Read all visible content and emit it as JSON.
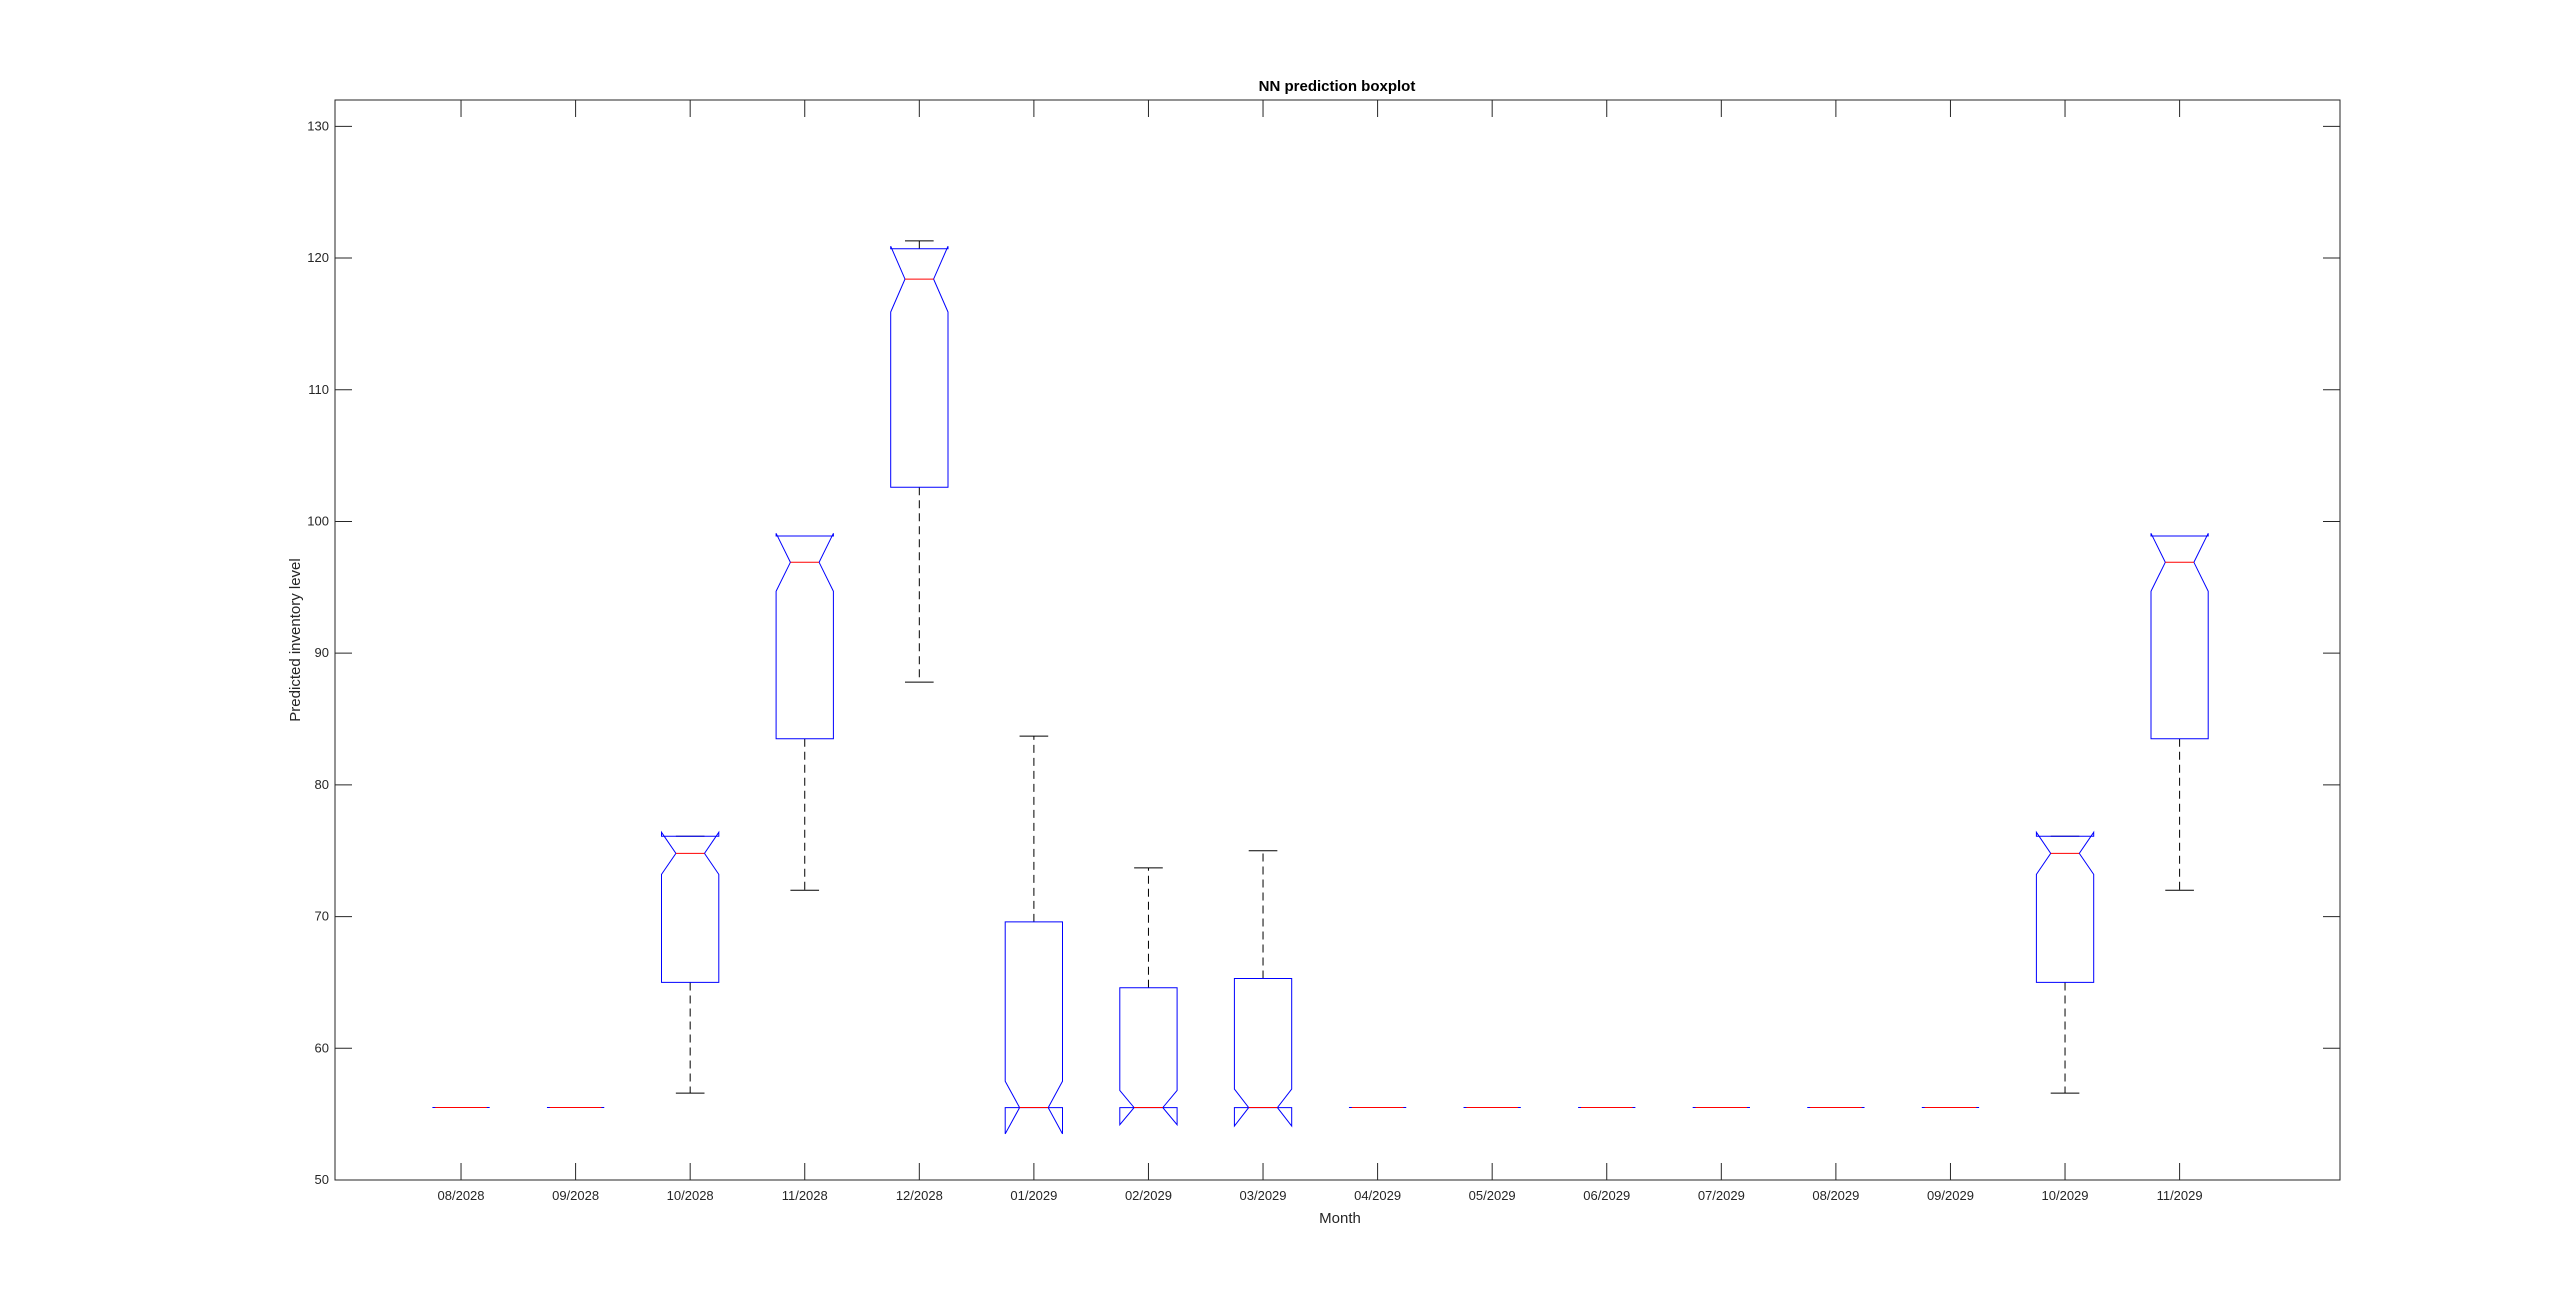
{
  "chart_data": {
    "type": "boxplot",
    "title": "NN prediction boxplot",
    "xlabel": "Month",
    "ylabel": "Predicted inventory level",
    "ylim": [
      50,
      132
    ],
    "yticks": [
      50,
      60,
      70,
      80,
      90,
      100,
      110,
      120,
      130
    ],
    "grid": false,
    "notched": true,
    "colors": {
      "box": "#0000ff",
      "median": "#ff0000",
      "whisker": "#000000",
      "axis": "#262626"
    },
    "categories": [
      "08/2028",
      "09/2028",
      "10/2028",
      "11/2028",
      "12/2028",
      "01/2029",
      "02/2029",
      "03/2029",
      "04/2029",
      "05/2029",
      "06/2029",
      "07/2029",
      "08/2029",
      "09/2029",
      "10/2029",
      "11/2029"
    ],
    "boxes": [
      {
        "category": "08/2028",
        "min": 55.5,
        "q1": 55.5,
        "median": 55.5,
        "q3": 55.5,
        "max": 55.5,
        "notch_low": 55.5,
        "notch_high": 55.5
      },
      {
        "category": "09/2028",
        "min": 55.5,
        "q1": 55.5,
        "median": 55.5,
        "q3": 55.5,
        "max": 55.5,
        "notch_low": 55.5,
        "notch_high": 55.5
      },
      {
        "category": "10/2028",
        "min": 56.6,
        "q1": 65.0,
        "median": 74.8,
        "q3": 76.1,
        "max": 76.1,
        "notch_low": 73.2,
        "notch_high": 76.4
      },
      {
        "category": "11/2028",
        "min": 72.0,
        "q1": 83.5,
        "median": 96.9,
        "q3": 98.9,
        "max": 98.9,
        "notch_low": 94.7,
        "notch_high": 99.1
      },
      {
        "category": "12/2028",
        "min": 87.8,
        "q1": 102.6,
        "median": 118.4,
        "q3": 120.7,
        "max": 121.3,
        "notch_low": 115.9,
        "notch_high": 120.9
      },
      {
        "category": "01/2029",
        "min": 55.5,
        "q1": 55.5,
        "median": 55.5,
        "q3": 69.6,
        "max": 83.7,
        "notch_low": 53.5,
        "notch_high": 57.5
      },
      {
        "category": "02/2029",
        "min": 55.5,
        "q1": 55.5,
        "median": 55.5,
        "q3": 64.6,
        "max": 73.7,
        "notch_low": 54.2,
        "notch_high": 56.8
      },
      {
        "category": "03/2029",
        "min": 55.5,
        "q1": 55.5,
        "median": 55.5,
        "q3": 65.3,
        "max": 75.0,
        "notch_low": 54.1,
        "notch_high": 56.9
      },
      {
        "category": "04/2029",
        "min": 55.5,
        "q1": 55.5,
        "median": 55.5,
        "q3": 55.5,
        "max": 55.5,
        "notch_low": 55.5,
        "notch_high": 55.5
      },
      {
        "category": "05/2029",
        "min": 55.5,
        "q1": 55.5,
        "median": 55.5,
        "q3": 55.5,
        "max": 55.5,
        "notch_low": 55.5,
        "notch_high": 55.5
      },
      {
        "category": "06/2029",
        "min": 55.5,
        "q1": 55.5,
        "median": 55.5,
        "q3": 55.5,
        "max": 55.5,
        "notch_low": 55.5,
        "notch_high": 55.5
      },
      {
        "category": "07/2029",
        "min": 55.5,
        "q1": 55.5,
        "median": 55.5,
        "q3": 55.5,
        "max": 55.5,
        "notch_low": 55.5,
        "notch_high": 55.5
      },
      {
        "category": "08/2029",
        "min": 55.5,
        "q1": 55.5,
        "median": 55.5,
        "q3": 55.5,
        "max": 55.5,
        "notch_low": 55.5,
        "notch_high": 55.5
      },
      {
        "category": "09/2029",
        "min": 55.5,
        "q1": 55.5,
        "median": 55.5,
        "q3": 55.5,
        "max": 55.5,
        "notch_low": 55.5,
        "notch_high": 55.5
      },
      {
        "category": "10/2029",
        "min": 56.6,
        "q1": 65.0,
        "median": 74.8,
        "q3": 76.1,
        "max": 76.1,
        "notch_low": 73.2,
        "notch_high": 76.4
      },
      {
        "category": "11/2029",
        "min": 72.0,
        "q1": 83.5,
        "median": 96.9,
        "q3": 98.9,
        "max": 98.9,
        "notch_low": 94.7,
        "notch_high": 99.1
      }
    ]
  }
}
